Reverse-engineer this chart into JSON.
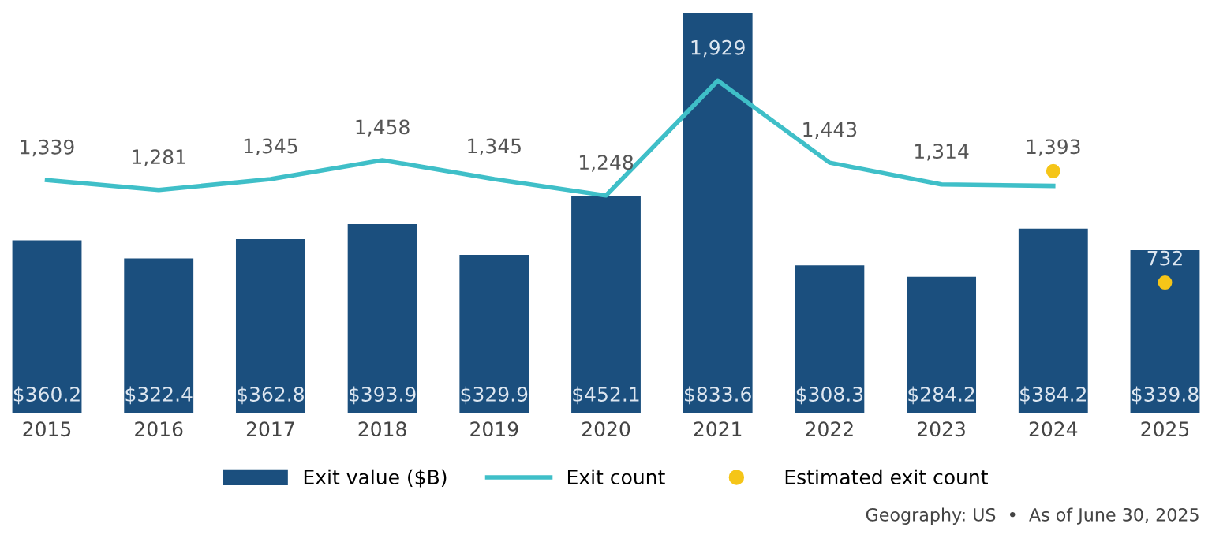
{
  "chart_data": {
    "type": "bar",
    "categories": [
      "2015",
      "2016",
      "2017",
      "2018",
      "2019",
      "2020",
      "2021",
      "2022",
      "2023",
      "2024",
      "2025"
    ],
    "series": [
      {
        "name": "Exit value ($B)",
        "color": "#1b4f7e",
        "values": [
          360.2,
          322.4,
          362.8,
          393.9,
          329.9,
          452.1,
          833.6,
          308.3,
          284.2,
          384.2,
          339.8
        ],
        "value_labels": [
          "$360.2",
          "$322.4",
          "$362.8",
          "$393.9",
          "$329.9",
          "$452.1",
          "$833.6",
          "$308.3",
          "$284.2",
          "$384.2",
          "$339.8"
        ]
      },
      {
        "name": "Exit count",
        "type": "line",
        "axis": "y2",
        "color": "#3fbfc8",
        "marker": "none",
        "values": [
          1339,
          1281,
          1345,
          1458,
          1345,
          1248,
          1929,
          1443,
          1314,
          1305,
          null
        ],
        "value_labels": [
          "1,339",
          "1,281",
          "1,345",
          "1,458",
          "1,345",
          "1,248",
          "1,929",
          "1,443",
          "1,314",
          null,
          null
        ]
      },
      {
        "name": "Estimated exit count",
        "type": "scatter",
        "axis": "y2",
        "color": "#f5c518",
        "marker": "circle",
        "values": [
          null,
          null,
          null,
          null,
          null,
          null,
          null,
          null,
          null,
          1393,
          732
        ],
        "value_labels": [
          null,
          null,
          null,
          null,
          null,
          null,
          null,
          null,
          null,
          "1,393",
          "732"
        ]
      }
    ],
    "ylim": [
      0,
      843
    ],
    "y2lim": [
      -45,
      2360
    ],
    "tick_labels": "x",
    "grid": false,
    "legend": "bottom",
    "annotations": [
      "Geography: US  •  As of June 30, 2025"
    ]
  }
}
